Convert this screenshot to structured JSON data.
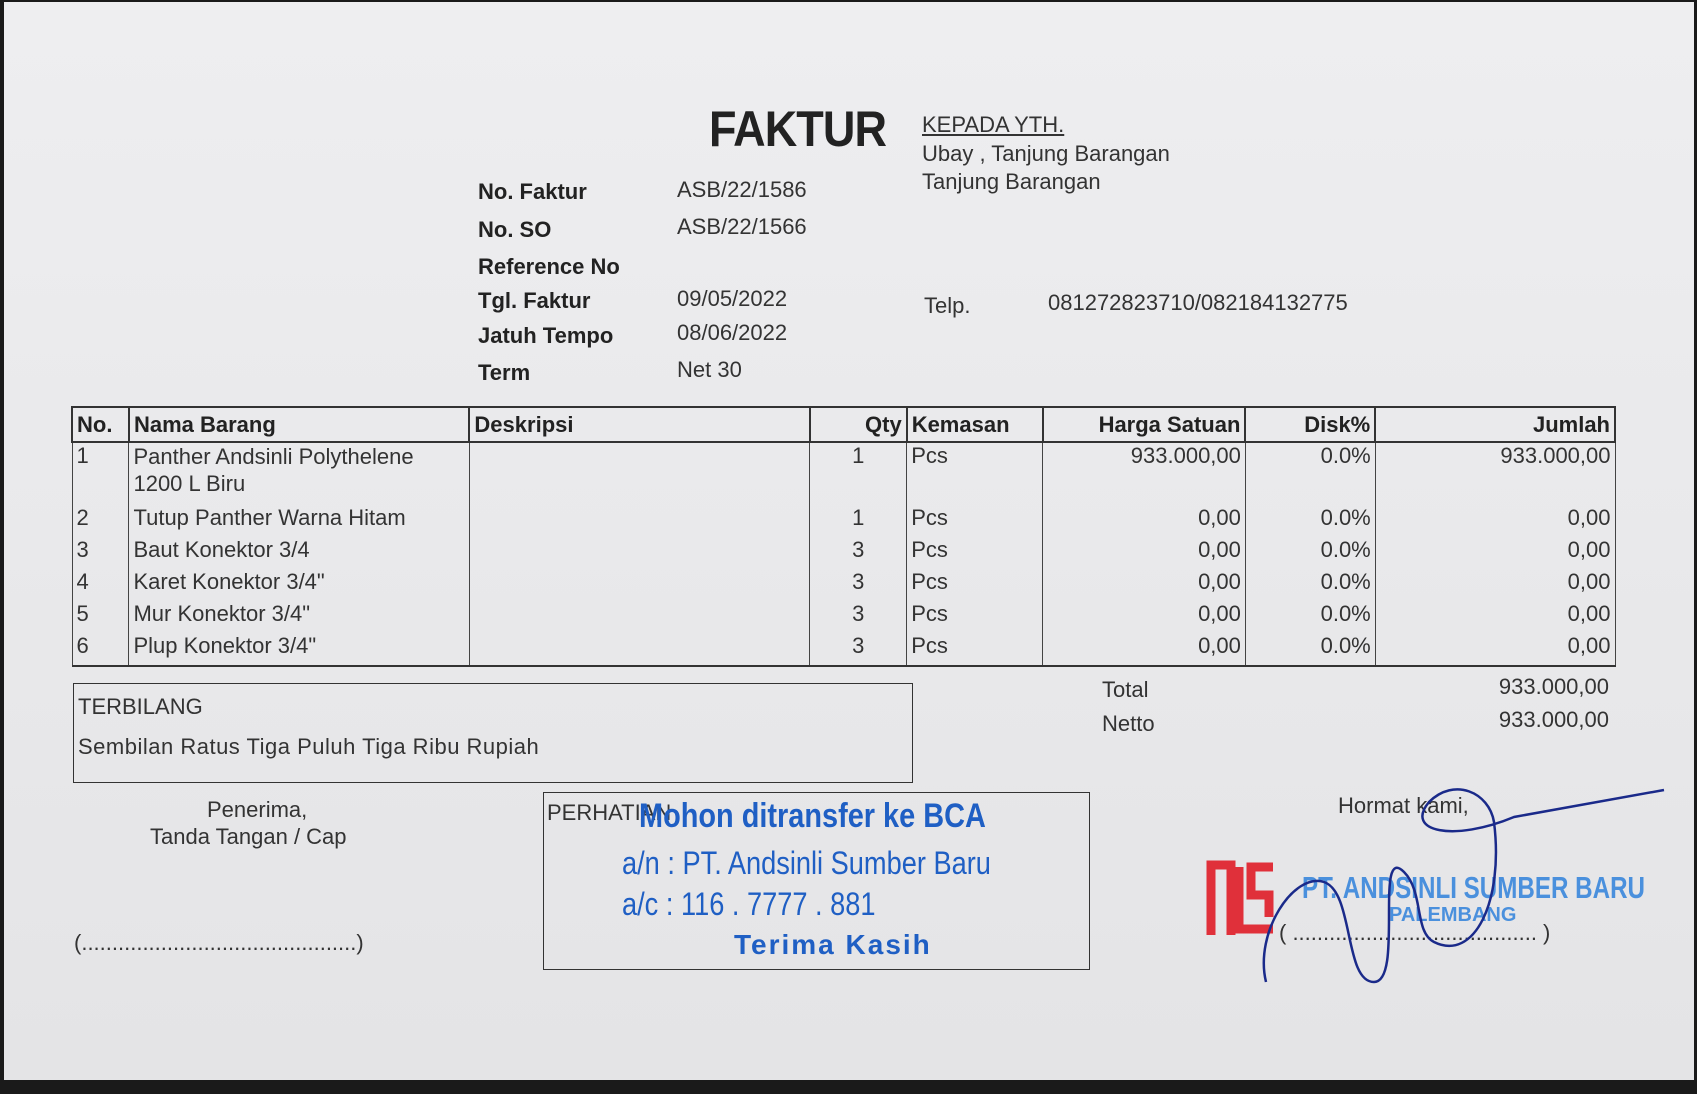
{
  "header": {
    "title": "FAKTUR",
    "recipient_heading": "KEPADA YTH.",
    "recipient_name": "Ubay , Tanjung Barangan",
    "recipient_city": "Tanjung Barangan",
    "telp_label": "Telp.",
    "telp_value": "081272823710/082184132775"
  },
  "meta": [
    {
      "label": "No. Faktur",
      "value": "ASB/22/1586"
    },
    {
      "label": "No. SO",
      "value": "ASB/22/1566"
    },
    {
      "label": "Reference No",
      "value": ""
    },
    {
      "label": "Tgl. Faktur",
      "value": "09/05/2022"
    },
    {
      "label": "Jatuh Tempo",
      "value": "08/06/2022"
    },
    {
      "label": "Term",
      "value": "Net 30"
    }
  ],
  "table": {
    "columns": [
      "No.",
      "Nama Barang",
      "Deskripsi",
      "Qty",
      "Kemasan",
      "Harga Satuan",
      "Disk%",
      "Jumlah"
    ],
    "rows": [
      {
        "no": "1",
        "name": "Panther Andsinli Polythelene 1200 L Biru",
        "desc": "",
        "qty": "1",
        "unit": "Pcs",
        "price": "933.000,00",
        "disc": "0.0%",
        "total": "933.000,00"
      },
      {
        "no": "2",
        "name": "Tutup Panther Warna Hitam",
        "desc": "",
        "qty": "1",
        "unit": "Pcs",
        "price": "0,00",
        "disc": "0.0%",
        "total": "0,00"
      },
      {
        "no": "3",
        "name": "Baut Konektor 3/4",
        "desc": "",
        "qty": "3",
        "unit": "Pcs",
        "price": "0,00",
        "disc": "0.0%",
        "total": "0,00"
      },
      {
        "no": "4",
        "name": "Karet Konektor 3/4\"",
        "desc": "",
        "qty": "3",
        "unit": "Pcs",
        "price": "0,00",
        "disc": "0.0%",
        "total": "0,00"
      },
      {
        "no": "5",
        "name": "Mur Konektor 3/4\"",
        "desc": "",
        "qty": "3",
        "unit": "Pcs",
        "price": "0,00",
        "disc": "0.0%",
        "total": "0,00"
      },
      {
        "no": "6",
        "name": "Plup Konektor 3/4\"",
        "desc": "",
        "qty": "3",
        "unit": "Pcs",
        "price": "0,00",
        "disc": "0.0%",
        "total": "0,00"
      }
    ]
  },
  "terbilang": {
    "label": "TERBILANG",
    "text": "Sembilan Ratus Tiga Puluh Tiga Ribu Rupiah"
  },
  "totals": {
    "total_label": "Total",
    "total_value": "933.000,00",
    "netto_label": "Netto",
    "netto_value": "933.000,00"
  },
  "receiver": {
    "line1": "Penerima,",
    "line2": "Tanda Tangan / Cap",
    "sign_line": "(.............................................)"
  },
  "notice": {
    "label": "PERHATIAN",
    "line1": "Mohon ditransfer ke BCA",
    "line2": "a/n : PT. Andsinli Sumber Baru",
    "line3": "a/c : 116 . 7777 . 881",
    "line4": "Terima Kasih"
  },
  "sender": {
    "greeting": "Hormat kami,",
    "stamp_company": "PT. ANDSINLI SUMBER BARU",
    "stamp_city": "PALEMBANG",
    "logo_text": "ASB",
    "sign_line": "( ........................................ )"
  },
  "colors": {
    "stamp_blue": "#1f5fc4",
    "logo_red": "#e0303a",
    "signature_ink": "#1a2a8a"
  }
}
